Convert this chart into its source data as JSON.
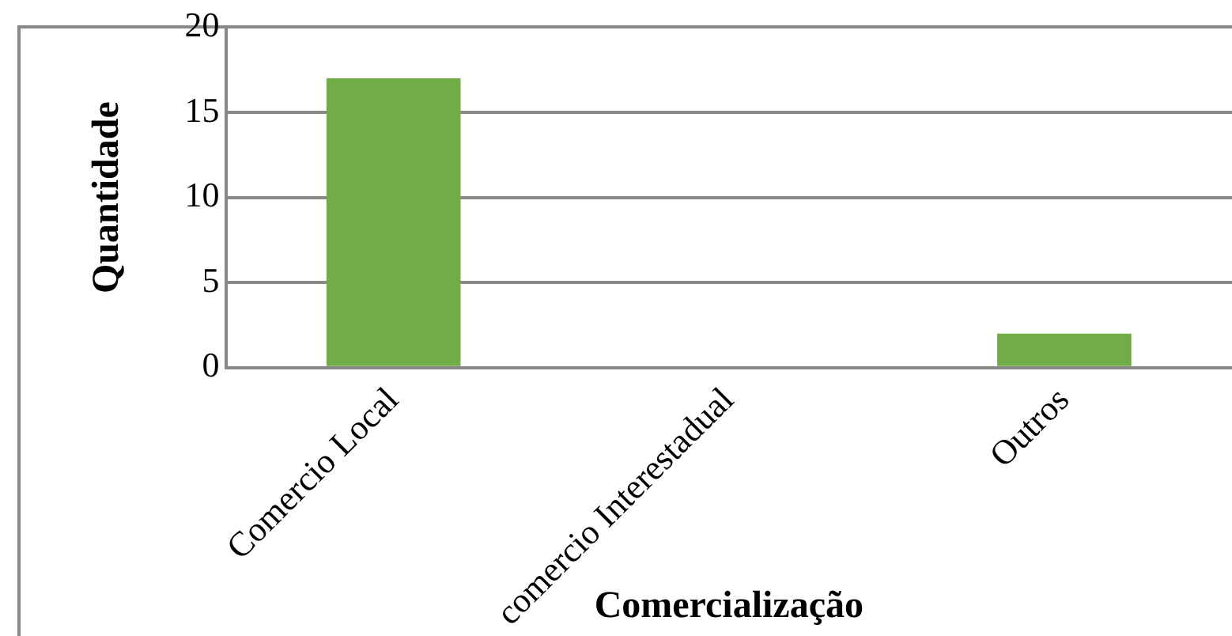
{
  "chart_data": {
    "type": "bar",
    "xlabel": "Comercialização",
    "ylabel": "Quantidade",
    "categories": [
      "Comercio Local",
      "comercio Interestadual",
      "Outros"
    ],
    "values": [
      17,
      0,
      2
    ],
    "color": "#70ad47",
    "ylim": [
      0,
      20
    ],
    "yticks": [
      0,
      5,
      10,
      15,
      20
    ],
    "grid": "y",
    "legend": false
  }
}
